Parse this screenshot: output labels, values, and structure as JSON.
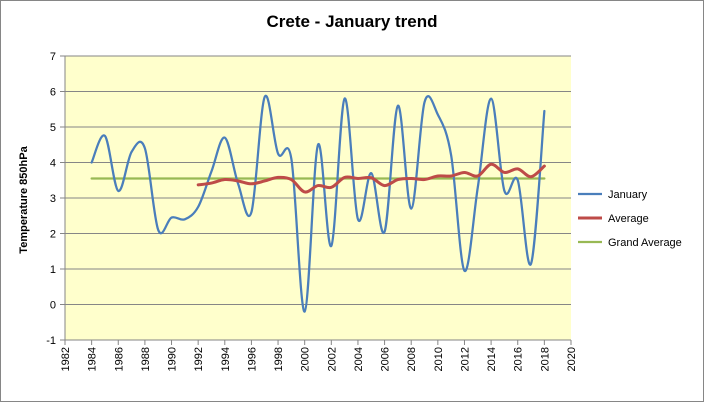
{
  "chart_data": {
    "type": "line",
    "title": "Crete - January trend",
    "xlabel": "",
    "ylabel": "Temperature 850hPa",
    "xlim": [
      1982,
      2020
    ],
    "ylim": [
      -1,
      7
    ],
    "xticks": [
      1982,
      1984,
      1986,
      1988,
      1990,
      1992,
      1994,
      1996,
      1998,
      2000,
      2002,
      2004,
      2006,
      2008,
      2010,
      2012,
      2014,
      2016,
      2018,
      2020
    ],
    "yticks": [
      -1,
      0,
      1,
      2,
      3,
      4,
      5,
      6,
      7
    ],
    "grid": true,
    "legend_position": "right",
    "plot_background": "#ffffcc",
    "series": [
      {
        "name": "January",
        "color": "#4a7ebb",
        "x": [
          1984,
          1985,
          1986,
          1987,
          1988,
          1989,
          1990,
          1991,
          1992,
          1993,
          1994,
          1995,
          1996,
          1997,
          1998,
          1999,
          2000,
          2001,
          2002,
          2003,
          2004,
          2005,
          2006,
          2007,
          2008,
          2009,
          2010,
          2011,
          2012,
          2013,
          2014,
          2015,
          2016,
          2017,
          2018
        ],
        "values": [
          4.0,
          4.75,
          3.2,
          4.3,
          4.4,
          2.1,
          2.45,
          2.4,
          2.75,
          3.75,
          4.7,
          3.4,
          2.6,
          5.85,
          4.25,
          4.1,
          -0.2,
          4.5,
          1.65,
          5.8,
          2.4,
          3.7,
          2.05,
          5.6,
          2.7,
          5.7,
          5.35,
          4.2,
          0.95,
          3.3,
          5.8,
          3.2,
          3.5,
          1.15,
          5.45
        ]
      },
      {
        "name": "Average",
        "color": "#be4b48",
        "x": [
          1992,
          1993,
          1994,
          1995,
          1996,
          1997,
          1998,
          1999,
          2000,
          2001,
          2002,
          2003,
          2004,
          2005,
          2006,
          2007,
          2008,
          2009,
          2010,
          2011,
          2012,
          2013,
          2014,
          2015,
          2016,
          2017,
          2018
        ],
        "values": [
          3.37,
          3.42,
          3.52,
          3.48,
          3.4,
          3.48,
          3.58,
          3.52,
          3.17,
          3.35,
          3.3,
          3.58,
          3.55,
          3.57,
          3.35,
          3.52,
          3.55,
          3.52,
          3.62,
          3.62,
          3.72,
          3.62,
          3.95,
          3.72,
          3.82,
          3.6,
          3.9
        ]
      },
      {
        "name": "Grand Average",
        "color": "#98b954",
        "x": [
          1984,
          2018
        ],
        "values": [
          3.55,
          3.55
        ]
      }
    ]
  }
}
